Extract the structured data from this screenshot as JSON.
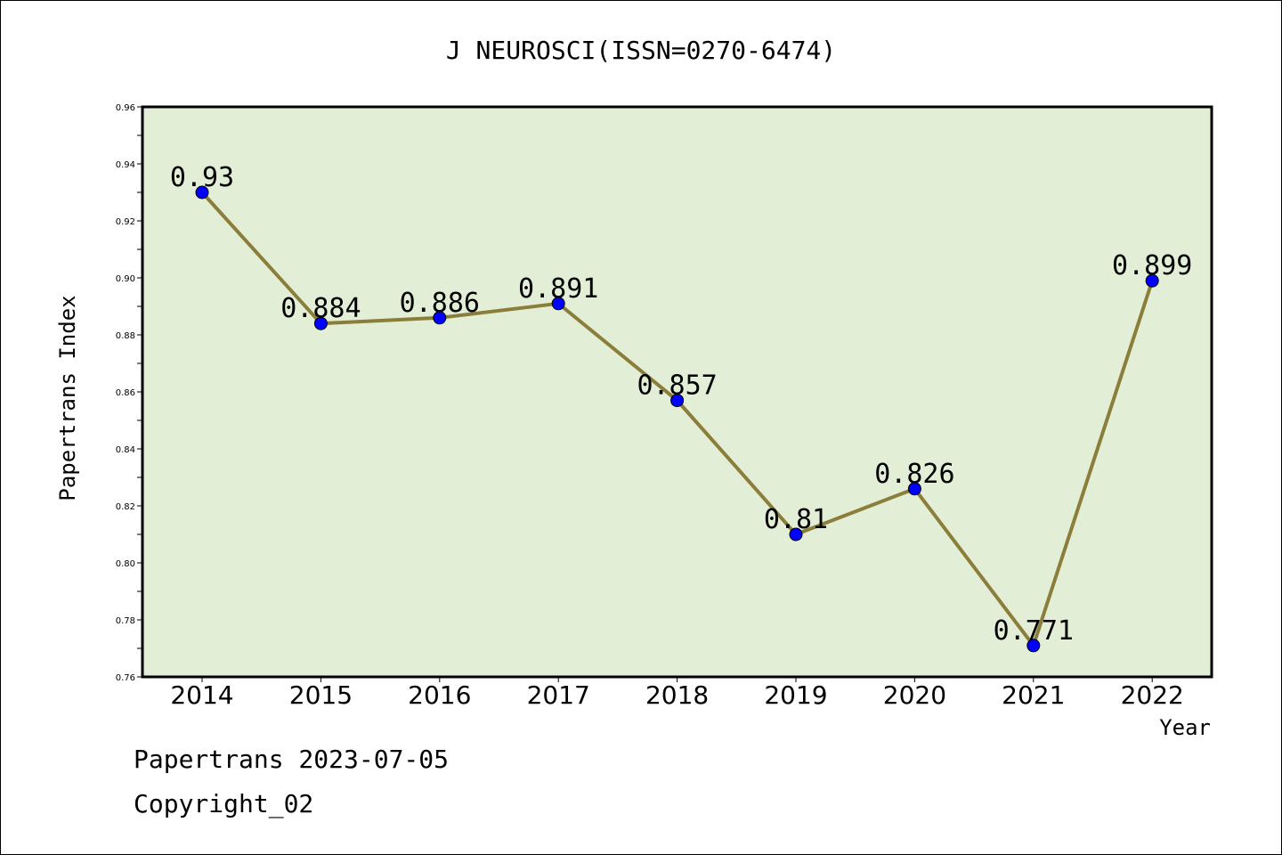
{
  "chart_data": {
    "type": "line",
    "title": "J NEUROSCI(ISSN=0270-6474)",
    "xlabel": "Year",
    "ylabel": "Papertrans Index",
    "categories": [
      "2014",
      "2015",
      "2016",
      "2017",
      "2018",
      "2019",
      "2020",
      "2021",
      "2022"
    ],
    "series": [
      {
        "values": [
          0.93,
          0.884,
          0.886,
          0.891,
          0.857,
          0.81,
          0.826,
          0.771,
          0.899
        ],
        "data_labels": [
          "0.93",
          "0.884",
          "0.886",
          "0.891",
          "0.857",
          "0.81",
          "0.826",
          "0.771",
          "0.899"
        ]
      }
    ],
    "ylim": [
      0.76,
      0.96
    ],
    "yticks": [
      "0.76",
      "0.78",
      "0.80",
      "0.82",
      "0.84",
      "0.86",
      "0.88",
      "0.90",
      "0.92",
      "0.94",
      "0.96"
    ],
    "grid": false,
    "legend": "none",
    "colors": {
      "line": "#8B7D3A",
      "marker": "#0000FF",
      "plot_background": "#E2EFD6",
      "page_background": "#FFFFFF"
    }
  },
  "footer": {
    "line1": "Papertrans 2023-07-05",
    "line2": "Copyright_02"
  }
}
